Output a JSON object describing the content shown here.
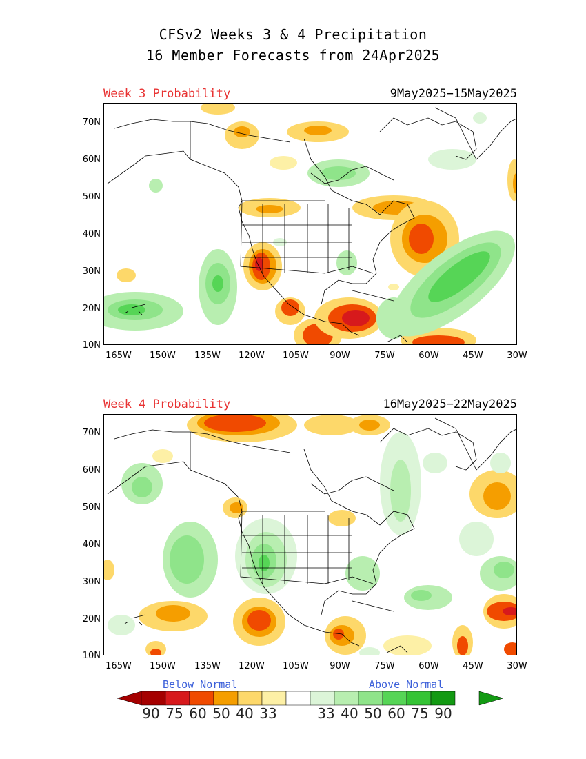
{
  "title_line1": "CFSv2 Weeks 3 & 4 Precipitation",
  "title_line2": "16 Member Forecasts from 24Apr2025",
  "panels": [
    {
      "label": "Week 3 Probability",
      "dates": "9May2025−15May2025"
    },
    {
      "label": "Week 4 Probability",
      "dates": "16May2025−22May2025"
    }
  ],
  "lat_ticks": [
    "70N",
    "60N",
    "50N",
    "40N",
    "30N",
    "20N",
    "10N"
  ],
  "lon_ticks": [
    "165W",
    "150W",
    "135W",
    "120W",
    "105W",
    "90W",
    "75W",
    "60W",
    "45W",
    "30W"
  ],
  "legend": {
    "below_label": "Below Normal",
    "above_label": "Above Normal",
    "numbers": [
      "90",
      "75",
      "60",
      "50",
      "40",
      "33",
      "33",
      "40",
      "50",
      "60",
      "75",
      "90"
    ],
    "below_colors": [
      "#a50000",
      "#d7191c",
      "#f04a00",
      "#f59e00",
      "#fdd86a",
      "#fdf0a6"
    ],
    "above_colors": [
      "#dcf5d8",
      "#b8eeb0",
      "#8fe48a",
      "#56d556",
      "#35c435",
      "#139a13"
    ],
    "neutral_color": "#ffffff"
  },
  "map_extent": {
    "lon": [
      -170,
      -30
    ],
    "lat": [
      10,
      75
    ]
  }
}
